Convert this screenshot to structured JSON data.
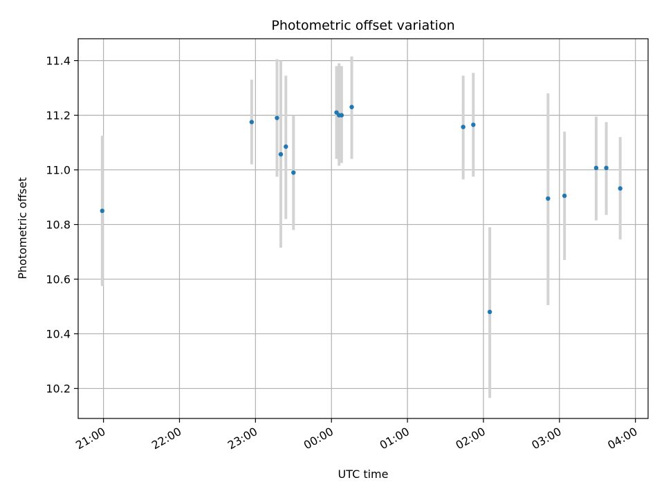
{
  "chart_data": {
    "type": "scatter",
    "title": "Photometric offset variation",
    "xlabel": "UTC time",
    "ylabel": "Photometric offset",
    "x_is_time": true,
    "xlim": [
      "20:40",
      "04:10"
    ],
    "ylim": [
      10.09,
      11.48
    ],
    "xticks": [
      "21:00",
      "22:00",
      "23:00",
      "00:00",
      "01:00",
      "02:00",
      "03:00",
      "04:00"
    ],
    "yticks": [
      "10.2",
      "10.4",
      "10.6",
      "10.8",
      "11.0",
      "11.2",
      "11.4"
    ],
    "grid": true,
    "colors": {
      "marker": "#1f77b4",
      "errorbar": "#d3d3d3",
      "grid": "#b0b0b0"
    },
    "points": [
      {
        "time": "20:59",
        "y": 10.85,
        "ylow": 10.575,
        "yhigh": 11.125
      },
      {
        "time": "22:57",
        "y": 11.175,
        "ylow": 11.02,
        "yhigh": 11.33
      },
      {
        "time": "23:17",
        "y": 11.19,
        "ylow": 10.975,
        "yhigh": 11.405
      },
      {
        "time": "23:20",
        "y": 11.057,
        "ylow": 10.715,
        "yhigh": 11.4
      },
      {
        "time": "23:24",
        "y": 11.085,
        "ylow": 10.82,
        "yhigh": 11.345
      },
      {
        "time": "23:30",
        "y": 10.99,
        "ylow": 10.78,
        "yhigh": 11.2
      },
      {
        "time": "00:04",
        "y": 11.21,
        "ylow": 11.04,
        "yhigh": 11.38
      },
      {
        "time": "00:06",
        "y": 11.2,
        "ylow": 11.015,
        "yhigh": 11.39
      },
      {
        "time": "00:08",
        "y": 11.2,
        "ylow": 11.025,
        "yhigh": 11.38
      },
      {
        "time": "00:16",
        "y": 11.23,
        "ylow": 11.04,
        "yhigh": 11.415
      },
      {
        "time": "01:44",
        "y": 11.157,
        "ylow": 10.965,
        "yhigh": 11.345
      },
      {
        "time": "01:52",
        "y": 11.165,
        "ylow": 10.975,
        "yhigh": 11.355
      },
      {
        "time": "02:05",
        "y": 10.48,
        "ylow": 10.165,
        "yhigh": 10.79
      },
      {
        "time": "02:51",
        "y": 10.895,
        "ylow": 10.505,
        "yhigh": 11.28
      },
      {
        "time": "03:04",
        "y": 10.905,
        "ylow": 10.67,
        "yhigh": 11.14
      },
      {
        "time": "03:29",
        "y": 11.007,
        "ylow": 10.815,
        "yhigh": 11.195
      },
      {
        "time": "03:37",
        "y": 11.007,
        "ylow": 10.835,
        "yhigh": 11.175
      },
      {
        "time": "03:48",
        "y": 10.932,
        "ylow": 10.745,
        "yhigh": 11.12
      }
    ]
  }
}
